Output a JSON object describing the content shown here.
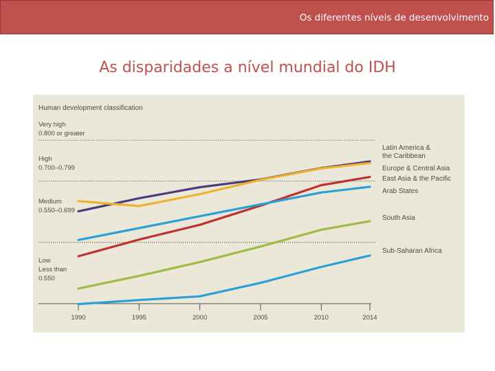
{
  "header": {
    "title": "Os diferentes níveis de desenvolvimento"
  },
  "slide": {
    "title": "As disparidades a nível mundial do IDH"
  },
  "chart_data": {
    "type": "line",
    "title": "Human development classification",
    "x": [
      1990,
      1995,
      2000,
      2005,
      2010,
      2014
    ],
    "xlim": [
      1990,
      2014
    ],
    "ylim": [
      0.39,
      0.78
    ],
    "bands": [
      {
        "name": "very_high",
        "lines": [
          "Very high",
          "0.800 or greater"
        ]
      },
      {
        "name": "high",
        "lines": [
          "High",
          "0.700–0.799"
        ],
        "upper": 0.8
      },
      {
        "name": "medium",
        "lines": [
          "Medium",
          "0.550–0.699"
        ],
        "upper": 0.7
      },
      {
        "name": "low",
        "lines": [
          "Low",
          "Less than",
          "0.550"
        ],
        "upper": 0.55
      }
    ],
    "series": [
      {
        "name": "Latin America & the Caribbean",
        "label_lines": [
          "Latin America &",
          "the Caribbean"
        ],
        "color": "#4a3d7a",
        "values": [
          0.626,
          0.658,
          0.685,
          0.704,
          0.732,
          0.748
        ]
      },
      {
        "name": "Europe & Central Asia",
        "label_lines": [
          "Europe & Central Asia"
        ],
        "color": "#f0b030",
        "values": [
          0.651,
          0.639,
          0.668,
          0.703,
          0.731,
          0.744
        ]
      },
      {
        "name": "East Asia & the Pacific",
        "label_lines": [
          "East Asia & the Pacific"
        ],
        "color": "#c0322d",
        "values": [
          0.516,
          0.557,
          0.593,
          0.64,
          0.69,
          0.71
        ]
      },
      {
        "name": "Arab States",
        "label_lines": [
          "Arab States"
        ],
        "color": "#2a9fd8",
        "values": [
          0.556,
          0.585,
          0.614,
          0.643,
          0.672,
          0.686
        ]
      },
      {
        "name": "South Asia",
        "label_lines": [
          "South Asia"
        ],
        "color": "#9dbb45",
        "values": [
          0.437,
          0.468,
          0.502,
          0.54,
          0.581,
          0.602
        ]
      },
      {
        "name": "Sub-Saharan Africa",
        "label_lines": [
          "Sub-Saharan Africa"
        ],
        "color": "#2a9fd8",
        "values": [
          0.399,
          0.409,
          0.418,
          0.451,
          0.49,
          0.518
        ]
      }
    ]
  }
}
